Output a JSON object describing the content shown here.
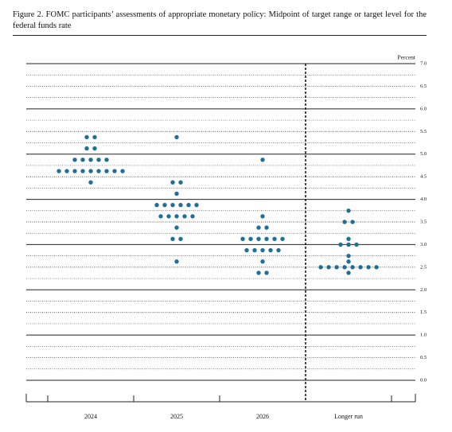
{
  "chart_data": {
    "type": "dot",
    "title": "Figure 2.  FOMC participants’ assessments of appropriate monetary policy:  Midpoint of target range or target level for the federal funds rate",
    "ylabel": "Percent",
    "color": "#1f6f98",
    "ylim": [
      0,
      7
    ],
    "yticks": [
      {
        "value": 0,
        "label": "0.0"
      },
      0.5,
      {
        "value": 1,
        "label": "1.0"
      },
      1.5,
      {
        "value": 2,
        "label": "2.0"
      },
      2.5,
      {
        "value": 3,
        "label": "3.0"
      },
      3.5,
      {
        "value": 4,
        "label": "4.0"
      },
      4.5,
      {
        "value": 5,
        "label": "5.0"
      },
      5.5,
      {
        "value": 6,
        "label": "6.0"
      },
      6.5,
      {
        "value": 7,
        "label": "7.0"
      }
    ],
    "minor_yticks": [
      0.25,
      0.75,
      1.25,
      1.75,
      2.25,
      2.75,
      3.25,
      3.75,
      4.25,
      4.75,
      5.25,
      5.75,
      6.25,
      6.75
    ],
    "columns": [
      {
        "name": "2024",
        "values": [
          5.375,
          5.375,
          5.125,
          5.125,
          4.875,
          4.875,
          4.875,
          4.875,
          4.875,
          4.625,
          4.625,
          4.625,
          4.625,
          4.625,
          4.625,
          4.625,
          4.625,
          4.625,
          4.375
        ]
      },
      {
        "name": "2025",
        "values": [
          5.375,
          4.375,
          4.375,
          4.125,
          3.875,
          3.875,
          3.875,
          3.875,
          3.875,
          3.875,
          3.625,
          3.625,
          3.625,
          3.625,
          3.625,
          3.375,
          3.125,
          3.125,
          2.625
        ]
      },
      {
        "name": "2026",
        "values": [
          4.875,
          3.625,
          3.375,
          3.375,
          3.125,
          3.125,
          3.125,
          3.125,
          3.125,
          3.125,
          2.875,
          2.875,
          2.875,
          2.875,
          2.875,
          2.625,
          2.375,
          2.375
        ]
      },
      {
        "name": "Longer run",
        "values": [
          3.75,
          3.5,
          3.5,
          3.125,
          3.0,
          3.0,
          3.0,
          2.75,
          2.625,
          2.5,
          2.5,
          2.5,
          2.5,
          2.5,
          2.5,
          2.5,
          2.5,
          2.375
        ]
      }
    ]
  }
}
